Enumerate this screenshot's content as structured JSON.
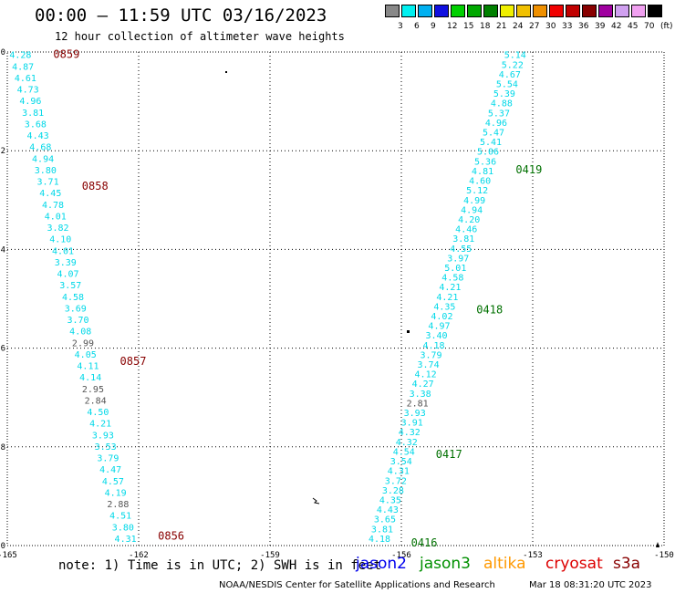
{
  "header": {
    "title": "00:00 – 11:59 UTC 03/16/2023",
    "subtitle": "12 hour collection of altimeter wave heights"
  },
  "legend": {
    "colors": [
      "#888888",
      "#00f0f0",
      "#00b0f0",
      "#1010e0",
      "#00d000",
      "#00a800",
      "#008000",
      "#f0f000",
      "#f0c000",
      "#f09000",
      "#f00000",
      "#c00000",
      "#880000",
      "#a000a0",
      "#d0a0f0",
      "#f0a0f0",
      "#000000"
    ],
    "labels": [
      "3",
      "6",
      "9",
      "12",
      "15",
      "18",
      "21",
      "24",
      "27",
      "30",
      "33",
      "36",
      "39",
      "42",
      "45",
      "70",
      "(ft)"
    ]
  },
  "chart_data": {
    "type": "scatter",
    "title": "00:00 – 11:59 UTC 03/16/2023",
    "subtitle": "12 hour collection of altimeter wave heights",
    "xlim": [
      -165,
      -150
    ],
    "ylim": [
      -10,
      0
    ],
    "x_ticks": [
      "-165",
      "-162",
      "-159",
      "-156",
      "-153",
      "-150"
    ],
    "y_ticks": [
      "0",
      "-2",
      "-4",
      "-6",
      "-8",
      "-10"
    ],
    "grid": true,
    "tracks": [
      {
        "name": "left track (cryosat)",
        "lon_start": -164.7,
        "lat_start": -0.05,
        "lon_end": -162.3,
        "lat_end": -9.85,
        "swh": [
          "4.28",
          "4.87",
          "4.61",
          "4.73",
          "4.96",
          "3.81",
          "3.68",
          "4.43",
          "4.68",
          "4.94",
          "3.80",
          "3.71",
          "4.45",
          "4.78",
          "4.01",
          "3.82",
          "4.10",
          "4.01",
          "3.39",
          "4.07",
          "3.57",
          "4.58",
          "3.69",
          "3.70",
          "4.08",
          "2.99",
          "4.05",
          "4.11",
          "4.14",
          "2.95",
          "2.84",
          "4.50",
          "4.21",
          "3.93",
          "3.53",
          "3.79",
          "4.47",
          "4.57",
          "4.19",
          "2.88",
          "4.51",
          "3.80",
          "4.31"
        ],
        "times": [
          {
            "label": "0859",
            "lat": -0.05
          },
          {
            "label": "0858",
            "lat": -2.72
          },
          {
            "label": "0857",
            "lat": -6.27
          },
          {
            "label": "0856",
            "lat": -9.81
          }
        ]
      },
      {
        "name": "right track (jason3)",
        "lon_start": -153.4,
        "lat_start": -0.05,
        "lon_end": -156.5,
        "lat_end": -9.85,
        "swh": [
          "5.14",
          "5.22",
          "4.67",
          "5.54",
          "5.39",
          "4.88",
          "5.37",
          "4.96",
          "5.47",
          "5.41",
          "5.06",
          "5.36",
          "4.81",
          "4.60",
          "5.12",
          "4.99",
          "4.94",
          "4.20",
          "4.46",
          "3.81",
          "4.55",
          "3.97",
          "5.01",
          "4.58",
          "4.21",
          "4.21",
          "4.35",
          "4.02",
          "4.97",
          "3.40",
          "4.18",
          "3.79",
          "3.74",
          "4.12",
          "4.27",
          "3.38",
          "2.81",
          "3.93",
          "3.91",
          "4.32",
          "4.32",
          "4.54",
          "3.54",
          "4.31",
          "3.72",
          "3.28",
          "4.35",
          "4.43",
          "3.65",
          "3.81",
          "4.18"
        ],
        "times": [
          {
            "label": "0419",
            "lat": -2.38
          },
          {
            "label": "0418",
            "lat": -5.22
          },
          {
            "label": "0417",
            "lat": -8.15
          },
          {
            "label": "0416",
            "lat": -9.94
          }
        ]
      }
    ]
  },
  "footer": {
    "note": "note: 1) Time is in UTC; 2) SWH is in feet",
    "satellites": [
      {
        "name": "jason2",
        "color": "#0000ee"
      },
      {
        "name": "jason3",
        "color": "#009000"
      },
      {
        "name": "altika",
        "color": "#ff9900"
      },
      {
        "name": "cryosat",
        "color": "#dd0000"
      },
      {
        "name": "s3a",
        "color": "#880000"
      }
    ],
    "credit": "NOAA/NESDIS Center for Satellite Applications and Research",
    "timestamp": "Mar 18 08:31:20 UTC 2023"
  }
}
